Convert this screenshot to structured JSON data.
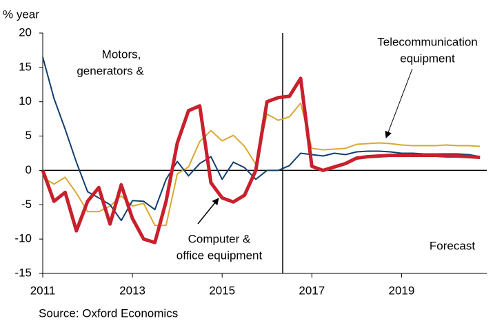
{
  "chart_data": {
    "type": "line",
    "y_label": "% year",
    "source": "Source: Oxford Economics",
    "x": [
      2011,
      2011.25,
      2011.5,
      2011.75,
      2012,
      2012.25,
      2012.5,
      2012.75,
      2013,
      2013.25,
      2013.5,
      2013.75,
      2014,
      2014.25,
      2014.5,
      2014.75,
      2015,
      2015.25,
      2015.5,
      2015.75,
      2016,
      2016.25,
      2016.5,
      2016.75,
      2017,
      2017.25,
      2017.5,
      2017.75,
      2018,
      2018.25,
      2018.5,
      2018.75,
      2019,
      2019.25,
      2019.5,
      2019.75,
      2020,
      2020.25,
      2020.5,
      2020.75
    ],
    "series": [
      {
        "name": "Telecommunication equipment",
        "color": "#d9a82e",
        "width": 2,
        "values": [
          -1,
          -2,
          -1,
          -3.3,
          -6,
          -6,
          -5.2,
          -3.7,
          -5.2,
          -4.8,
          -8,
          -8,
          -0.5,
          0.5,
          4.2,
          5.8,
          4.3,
          5.1,
          3.5,
          0.9,
          8.2,
          7.3,
          7.8,
          9.8,
          3.2,
          3,
          3.1,
          3.2,
          3.8,
          3.9,
          4,
          3.9,
          3.7,
          3.6,
          3.6,
          3.6,
          3.7,
          3.6,
          3.6,
          3.5
        ]
      },
      {
        "name": "Computer & office equipment",
        "color": "#123f6e",
        "width": 2,
        "values": [
          16.5,
          10.5,
          6,
          1.2,
          -3.1,
          -4,
          -5,
          -7.3,
          -4.4,
          -4.5,
          -5.7,
          -1.3,
          1.3,
          -0.8,
          1,
          2,
          -1.3,
          1.2,
          0.4,
          -1.3,
          0,
          0,
          0.7,
          2.5,
          2.3,
          2.1,
          2.5,
          2.3,
          2.7,
          2.8,
          2.8,
          2.7,
          2.5,
          2.5,
          2.4,
          2.4,
          2.4,
          2.4,
          2.3,
          2
        ]
      },
      {
        "name": "Motors, generators &",
        "color": "#c8202c",
        "width": 5,
        "values": [
          0,
          -4.5,
          -3.2,
          -8.8,
          -4.5,
          -2.5,
          -7.8,
          -2.1,
          -7,
          -10,
          -10.5,
          -4.5,
          4,
          8.7,
          9.4,
          -1.8,
          -4,
          -4.6,
          -3.6,
          0,
          10,
          10.6,
          10.8,
          13.4,
          0.6,
          0,
          0.5,
          1,
          1.8,
          2,
          2.1,
          2.2,
          2.2,
          2.2,
          2.2,
          2.2,
          2.1,
          2.1,
          2,
          1.9
        ]
      }
    ],
    "labels": {
      "motors": [
        "Motors,",
        "generators &"
      ],
      "telecom": [
        "Telecommunication",
        "equipment"
      ],
      "computer": [
        "Computer &",
        "office equipment"
      ],
      "forecast": "Forecast"
    },
    "forecast_start": 2016.35,
    "xlim": [
      2011,
      2020.9
    ],
    "xticks": [
      2011,
      2013,
      2015,
      2017,
      2019
    ],
    "ylim": [
      -15,
      20
    ],
    "yticks": [
      -15,
      -10,
      -5,
      0,
      5,
      10,
      15,
      20
    ]
  }
}
